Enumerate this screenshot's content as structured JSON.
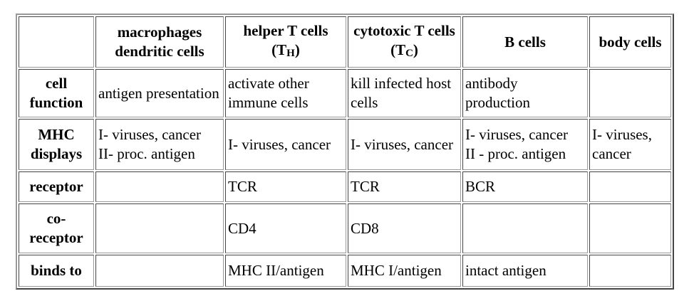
{
  "table": {
    "header": [
      null,
      "macrophages dendritic cells",
      {
        "text": "helper T cells (T",
        "sub": "H",
        "after": ")"
      },
      {
        "text": "cytotoxic T cells (T",
        "sub": "C",
        "after": ")"
      },
      "B cells",
      "body cells"
    ],
    "rows": [
      {
        "label": "cell function",
        "cells": [
          "antigen presentation",
          "activate other immune cells",
          "kill infected host cells",
          "antibody production",
          null
        ]
      },
      {
        "label": "MHC displays",
        "cells": [
          [
            "I- viruses, cancer",
            "II- proc. antigen"
          ],
          "I- viruses, cancer",
          "I- viruses, cancer",
          [
            "I- viruses, cancer",
            "II - proc. antigen"
          ],
          "I- viruses, cancer"
        ]
      },
      {
        "label": "receptor",
        "cells": [
          null,
          "TCR",
          "TCR",
          "BCR",
          null
        ]
      },
      {
        "label": "co-receptor",
        "cells": [
          null,
          "CD4",
          "CD8",
          null,
          null
        ]
      },
      {
        "label": "binds to",
        "cells": [
          null,
          "MHC II/antigen",
          "MHC I/antigen",
          "intact antigen",
          null
        ]
      }
    ]
  }
}
